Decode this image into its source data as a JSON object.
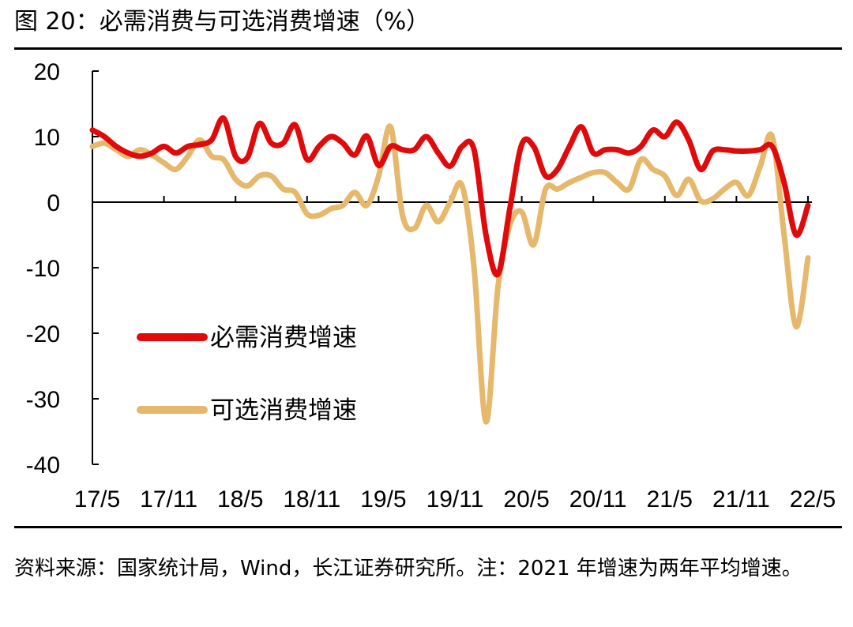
{
  "figure": {
    "title": "图 20：必需消费与可选消费增速（%）",
    "source_note": "资料来源：国家统计局，Wind，长江证券研究所。注：2021 年增速为两年平均增速。"
  },
  "chart_data": {
    "type": "line",
    "title": "必需消费与可选消费增速（%）",
    "xlabel": "",
    "ylabel": "",
    "ylim": [
      -40,
      20
    ],
    "yticks": [
      20,
      10,
      0,
      -10,
      -20,
      -30,
      -40
    ],
    "x_tick_labels": [
      "17/5",
      "17/11",
      "18/5",
      "18/11",
      "19/5",
      "19/11",
      "20/5",
      "20/11",
      "21/5",
      "21/11",
      "22/5"
    ],
    "x": [
      "17/05",
      "17/06",
      "17/07",
      "17/08",
      "17/09",
      "17/10",
      "17/11",
      "17/12",
      "18/01",
      "18/02",
      "18/03",
      "18/04",
      "18/05",
      "18/06",
      "18/07",
      "18/08",
      "18/09",
      "18/10",
      "18/11",
      "18/12",
      "19/01",
      "19/02",
      "19/03",
      "19/04",
      "19/05",
      "19/06",
      "19/07",
      "19/08",
      "19/09",
      "19/10",
      "19/11",
      "19/12",
      "20/01",
      "20/02",
      "20/03",
      "20/04",
      "20/05",
      "20/06",
      "20/07",
      "20/08",
      "20/09",
      "20/10",
      "20/11",
      "20/12",
      "21/01",
      "21/02",
      "21/03",
      "21/04",
      "21/05",
      "21/06",
      "21/07",
      "21/08",
      "21/09",
      "21/10",
      "21/11",
      "21/12",
      "22/01",
      "22/02",
      "22/03",
      "22/04",
      "22/05"
    ],
    "legend_position": "center-left",
    "series": [
      {
        "name": "必需消费增速",
        "color": "#e10a0a",
        "values": [
          11,
          10,
          8.5,
          7.5,
          7,
          7.5,
          8.5,
          7.5,
          8.5,
          8.8,
          9.5,
          12.8,
          7,
          6.8,
          12,
          9,
          9,
          11.8,
          6.5,
          8.5,
          10,
          9,
          7.2,
          10.1,
          5.6,
          8.5,
          8,
          8,
          10,
          7.5,
          5.5,
          8.5,
          8,
          -5,
          -11,
          -1,
          8.8,
          8.5,
          4,
          5,
          8.5,
          11.5,
          7.5,
          8,
          8,
          7.5,
          8.5,
          11,
          10,
          12.2,
          9.5,
          5,
          7.8,
          8,
          7.8,
          7.8,
          8,
          8.5,
          3,
          -5,
          -0.5
        ]
      },
      {
        "name": "可选消费增速",
        "color": "#e5b86c",
        "values": [
          8.5,
          9,
          8,
          7,
          8,
          7.2,
          6,
          5,
          7,
          9.5,
          7,
          6.5,
          3.5,
          2.5,
          4,
          4,
          2,
          1.5,
          -1.8,
          -2,
          -1,
          -0.5,
          1.5,
          -0.5,
          4,
          11.5,
          -2,
          -4,
          -0.5,
          -3,
          0,
          2.5,
          -10,
          -33.5,
          -13,
          -3.5,
          -1.5,
          -6.5,
          2,
          2,
          3,
          3.8,
          4.5,
          4.5,
          3,
          2,
          6.5,
          5,
          4,
          1,
          3.5,
          0.2,
          0.5,
          2,
          3,
          1,
          5.5,
          10,
          -5,
          -19,
          -8.5
        ]
      }
    ]
  }
}
